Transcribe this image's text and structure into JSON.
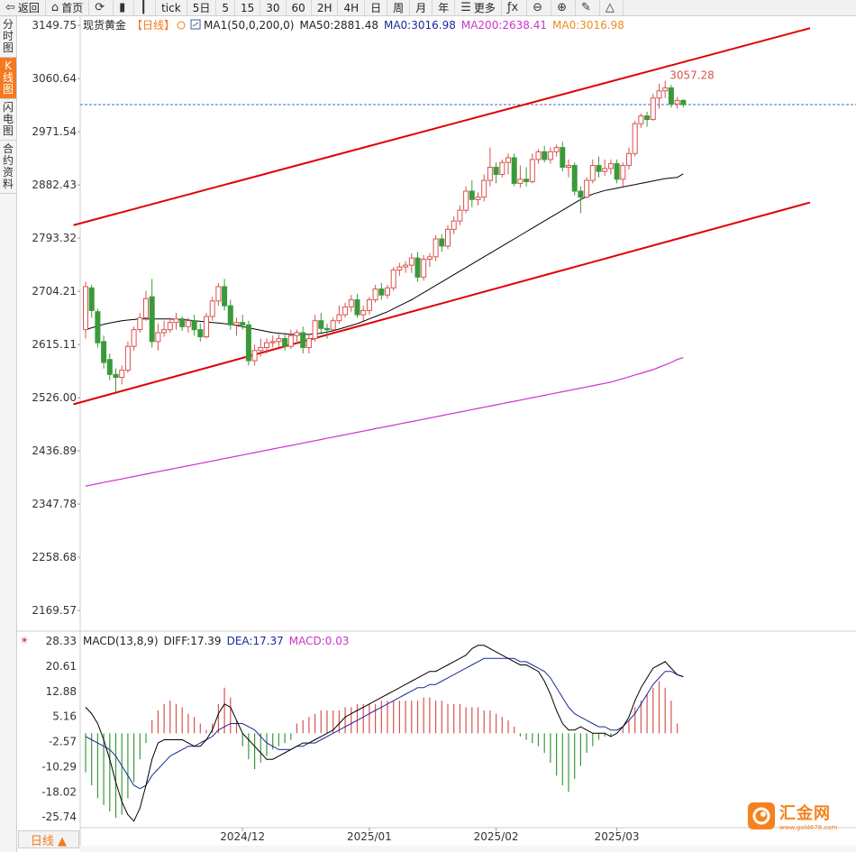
{
  "toolbar": {
    "items": [
      {
        "label": "返回",
        "icon": "back-arrow-icon"
      },
      {
        "label": "首页",
        "icon": "home-icon"
      },
      {
        "label": "",
        "icon": "refresh-icon"
      },
      {
        "label": "",
        "icon": "bar-chart-icon"
      },
      {
        "label": "",
        "icon": "candlestick-icon"
      },
      {
        "label": "tick",
        "icon": ""
      },
      {
        "label": "5日",
        "icon": ""
      },
      {
        "label": "5",
        "icon": ""
      },
      {
        "label": "15",
        "icon": ""
      },
      {
        "label": "30",
        "icon": ""
      },
      {
        "label": "60",
        "icon": ""
      },
      {
        "label": "2H",
        "icon": ""
      },
      {
        "label": "4H",
        "icon": ""
      },
      {
        "label": "日",
        "icon": ""
      },
      {
        "label": "周",
        "icon": ""
      },
      {
        "label": "月",
        "icon": ""
      },
      {
        "label": "年",
        "icon": ""
      },
      {
        "label": "更多",
        "icon": "menu-icon"
      },
      {
        "label": "",
        "icon": "fx-icon"
      },
      {
        "label": "",
        "icon": "zoom-out-icon"
      },
      {
        "label": "",
        "icon": "zoom-in-icon"
      },
      {
        "label": "",
        "icon": "pen-icon"
      },
      {
        "label": "",
        "icon": "triangle-icon"
      }
    ]
  },
  "sidebar": {
    "tabs": [
      {
        "label": "分时图",
        "active": false
      },
      {
        "label": "K线图",
        "active": true
      },
      {
        "label": "闪电图",
        "active": false
      },
      {
        "label": "合约资料",
        "active": false
      }
    ]
  },
  "legend": {
    "symbol": "现货黄金",
    "period": "【日线】",
    "ma1": "MA1(50,0,200,0)",
    "ma50": "MA50:2881.48",
    "ma0": "MA0:3016.98",
    "ma200": "MA200:2638.41",
    "ma0b": "MA0:3016.98"
  },
  "macd_legend": {
    "name": "MACD(13,8,9)",
    "diff": "DIFF:17.39",
    "dea": "DEA:17.37",
    "macd": "MACD:0.03"
  },
  "colors": {
    "up": "#d9534f",
    "down": "#3a9a3a",
    "ma50": "#000000",
    "ma200": "#cc33cc",
    "ma0": "#e89020",
    "channel": "#e00000",
    "dea": "#1a2a9a",
    "accent": "#f47a1f"
  },
  "period_badge": "日线 ▲",
  "watermark": {
    "title": "汇金网",
    "url": "www.gold678.com"
  },
  "price_label": "3057.28",
  "chart_data": {
    "type": "candlestick",
    "y_ticks": [
      "3149.75",
      "3060.64",
      "2971.54",
      "2882.43",
      "2793.32",
      "2704.21",
      "2615.11",
      "2526.00",
      "2436.89",
      "2347.78",
      "2258.68",
      "2169.57"
    ],
    "ylim": [
      2135,
      3165
    ],
    "x_ticks": [
      {
        "label": "2024/12",
        "index": 26
      },
      {
        "label": "2025/01",
        "index": 47
      },
      {
        "label": "2025/02",
        "index": 68
      },
      {
        "label": "2025/03",
        "index": 88
      }
    ],
    "current_price": 3016.98,
    "max_label": "3057.28",
    "candles": [
      {
        "o": 2640,
        "h": 2720,
        "l": 2625,
        "c": 2712
      },
      {
        "o": 2710,
        "h": 2715,
        "l": 2660,
        "c": 2672
      },
      {
        "o": 2670,
        "h": 2675,
        "l": 2610,
        "c": 2618
      },
      {
        "o": 2620,
        "h": 2630,
        "l": 2575,
        "c": 2585
      },
      {
        "o": 2590,
        "h": 2600,
        "l": 2555,
        "c": 2565
      },
      {
        "o": 2565,
        "h": 2575,
        "l": 2535,
        "c": 2560
      },
      {
        "o": 2560,
        "h": 2580,
        "l": 2548,
        "c": 2572
      },
      {
        "o": 2572,
        "h": 2620,
        "l": 2568,
        "c": 2612
      },
      {
        "o": 2612,
        "h": 2645,
        "l": 2605,
        "c": 2640
      },
      {
        "o": 2640,
        "h": 2668,
        "l": 2635,
        "c": 2660
      },
      {
        "o": 2660,
        "h": 2705,
        "l": 2655,
        "c": 2692
      },
      {
        "o": 2695,
        "h": 2725,
        "l": 2610,
        "c": 2620
      },
      {
        "o": 2620,
        "h": 2650,
        "l": 2605,
        "c": 2635
      },
      {
        "o": 2635,
        "h": 2655,
        "l": 2628,
        "c": 2640
      },
      {
        "o": 2640,
        "h": 2660,
        "l": 2635,
        "c": 2652
      },
      {
        "o": 2652,
        "h": 2668,
        "l": 2640,
        "c": 2658
      },
      {
        "o": 2658,
        "h": 2662,
        "l": 2638,
        "c": 2645
      },
      {
        "o": 2645,
        "h": 2660,
        "l": 2635,
        "c": 2655
      },
      {
        "o": 2655,
        "h": 2665,
        "l": 2630,
        "c": 2640
      },
      {
        "o": 2640,
        "h": 2650,
        "l": 2620,
        "c": 2628
      },
      {
        "o": 2628,
        "h": 2668,
        "l": 2625,
        "c": 2662
      },
      {
        "o": 2662,
        "h": 2695,
        "l": 2655,
        "c": 2688
      },
      {
        "o": 2688,
        "h": 2718,
        "l": 2680,
        "c": 2712
      },
      {
        "o": 2712,
        "h": 2725,
        "l": 2672,
        "c": 2680
      },
      {
        "o": 2680,
        "h": 2690,
        "l": 2640,
        "c": 2648
      },
      {
        "o": 2648,
        "h": 2660,
        "l": 2630,
        "c": 2652
      },
      {
        "o": 2652,
        "h": 2665,
        "l": 2640,
        "c": 2648
      },
      {
        "o": 2648,
        "h": 2655,
        "l": 2580,
        "c": 2588
      },
      {
        "o": 2588,
        "h": 2615,
        "l": 2580,
        "c": 2605
      },
      {
        "o": 2605,
        "h": 2625,
        "l": 2595,
        "c": 2610
      },
      {
        "o": 2610,
        "h": 2625,
        "l": 2600,
        "c": 2618
      },
      {
        "o": 2618,
        "h": 2630,
        "l": 2610,
        "c": 2620
      },
      {
        "o": 2620,
        "h": 2632,
        "l": 2610,
        "c": 2625
      },
      {
        "o": 2625,
        "h": 2635,
        "l": 2605,
        "c": 2612
      },
      {
        "o": 2612,
        "h": 2640,
        "l": 2608,
        "c": 2630
      },
      {
        "o": 2630,
        "h": 2640,
        "l": 2620,
        "c": 2635
      },
      {
        "o": 2635,
        "h": 2645,
        "l": 2600,
        "c": 2610
      },
      {
        "o": 2610,
        "h": 2632,
        "l": 2600,
        "c": 2625
      },
      {
        "o": 2625,
        "h": 2665,
        "l": 2620,
        "c": 2655
      },
      {
        "o": 2655,
        "h": 2668,
        "l": 2635,
        "c": 2642
      },
      {
        "o": 2642,
        "h": 2650,
        "l": 2625,
        "c": 2640
      },
      {
        "o": 2640,
        "h": 2660,
        "l": 2635,
        "c": 2655
      },
      {
        "o": 2655,
        "h": 2680,
        "l": 2650,
        "c": 2665
      },
      {
        "o": 2665,
        "h": 2685,
        "l": 2660,
        "c": 2678
      },
      {
        "o": 2678,
        "h": 2698,
        "l": 2670,
        "c": 2690
      },
      {
        "o": 2690,
        "h": 2700,
        "l": 2660,
        "c": 2665
      },
      {
        "o": 2665,
        "h": 2680,
        "l": 2655,
        "c": 2672
      },
      {
        "o": 2672,
        "h": 2695,
        "l": 2665,
        "c": 2690
      },
      {
        "o": 2690,
        "h": 2715,
        "l": 2685,
        "c": 2708
      },
      {
        "o": 2708,
        "h": 2718,
        "l": 2690,
        "c": 2698
      },
      {
        "o": 2698,
        "h": 2715,
        "l": 2692,
        "c": 2710
      },
      {
        "o": 2710,
        "h": 2745,
        "l": 2705,
        "c": 2740
      },
      {
        "o": 2740,
        "h": 2752,
        "l": 2730,
        "c": 2745
      },
      {
        "o": 2745,
        "h": 2755,
        "l": 2735,
        "c": 2748
      },
      {
        "o": 2748,
        "h": 2768,
        "l": 2735,
        "c": 2760
      },
      {
        "o": 2760,
        "h": 2770,
        "l": 2720,
        "c": 2728
      },
      {
        "o": 2728,
        "h": 2765,
        "l": 2722,
        "c": 2758
      },
      {
        "o": 2758,
        "h": 2768,
        "l": 2745,
        "c": 2762
      },
      {
        "o": 2762,
        "h": 2798,
        "l": 2755,
        "c": 2792
      },
      {
        "o": 2792,
        "h": 2800,
        "l": 2770,
        "c": 2780
      },
      {
        "o": 2780,
        "h": 2815,
        "l": 2775,
        "c": 2808
      },
      {
        "o": 2808,
        "h": 2830,
        "l": 2800,
        "c": 2822
      },
      {
        "o": 2822,
        "h": 2848,
        "l": 2815,
        "c": 2840
      },
      {
        "o": 2840,
        "h": 2880,
        "l": 2835,
        "c": 2872
      },
      {
        "o": 2872,
        "h": 2890,
        "l": 2845,
        "c": 2858
      },
      {
        "o": 2858,
        "h": 2870,
        "l": 2848,
        "c": 2862
      },
      {
        "o": 2862,
        "h": 2900,
        "l": 2855,
        "c": 2890
      },
      {
        "o": 2890,
        "h": 2945,
        "l": 2880,
        "c": 2912
      },
      {
        "o": 2912,
        "h": 2920,
        "l": 2885,
        "c": 2900
      },
      {
        "o": 2900,
        "h": 2925,
        "l": 2895,
        "c": 2920
      },
      {
        "o": 2920,
        "h": 2935,
        "l": 2900,
        "c": 2928
      },
      {
        "o": 2928,
        "h": 2935,
        "l": 2880,
        "c": 2885
      },
      {
        "o": 2885,
        "h": 2915,
        "l": 2878,
        "c": 2892
      },
      {
        "o": 2892,
        "h": 2912,
        "l": 2880,
        "c": 2888
      },
      {
        "o": 2888,
        "h": 2935,
        "l": 2885,
        "c": 2925
      },
      {
        "o": 2925,
        "h": 2942,
        "l": 2918,
        "c": 2938
      },
      {
        "o": 2938,
        "h": 2948,
        "l": 2920,
        "c": 2925
      },
      {
        "o": 2925,
        "h": 2945,
        "l": 2918,
        "c": 2938
      },
      {
        "o": 2938,
        "h": 2950,
        "l": 2930,
        "c": 2945
      },
      {
        "o": 2945,
        "h": 2955,
        "l": 2905,
        "c": 2912
      },
      {
        "o": 2912,
        "h": 2925,
        "l": 2895,
        "c": 2915
      },
      {
        "o": 2915,
        "h": 2920,
        "l": 2865,
        "c": 2872
      },
      {
        "o": 2872,
        "h": 2880,
        "l": 2835,
        "c": 2862
      },
      {
        "o": 2862,
        "h": 2895,
        "l": 2860,
        "c": 2890
      },
      {
        "o": 2890,
        "h": 2925,
        "l": 2885,
        "c": 2915
      },
      {
        "o": 2915,
        "h": 2930,
        "l": 2895,
        "c": 2905
      },
      {
        "o": 2905,
        "h": 2925,
        "l": 2898,
        "c": 2910
      },
      {
        "o": 2910,
        "h": 2925,
        "l": 2900,
        "c": 2918
      },
      {
        "o": 2918,
        "h": 2925,
        "l": 2885,
        "c": 2892
      },
      {
        "o": 2892,
        "h": 2920,
        "l": 2880,
        "c": 2915
      },
      {
        "o": 2915,
        "h": 2945,
        "l": 2908,
        "c": 2935
      },
      {
        "o": 2935,
        "h": 2990,
        "l": 2930,
        "c": 2985
      },
      {
        "o": 2985,
        "h": 3002,
        "l": 2978,
        "c": 2998
      },
      {
        "o": 2998,
        "h": 3005,
        "l": 2980,
        "c": 2992
      },
      {
        "o": 2992,
        "h": 3035,
        "l": 2990,
        "c": 3028
      },
      {
        "o": 3028,
        "h": 3052,
        "l": 3010,
        "c": 3040
      },
      {
        "o": 3040,
        "h": 3057,
        "l": 3028,
        "c": 3045
      },
      {
        "o": 3045,
        "h": 3050,
        "l": 3012,
        "c": 3018
      },
      {
        "o": 3018,
        "h": 3030,
        "l": 3010,
        "c": 3024
      },
      {
        "o": 3024,
        "h": 3026,
        "l": 3012,
        "c": 3017
      }
    ],
    "ma50": [
      2640,
      2643,
      2646,
      2649,
      2651,
      2653,
      2655,
      2656,
      2657,
      2658,
      2658,
      2658,
      2658,
      2658,
      2658,
      2657,
      2657,
      2656,
      2655,
      2654,
      2653,
      2652,
      2651,
      2650,
      2649,
      2647,
      2645,
      2643,
      2641,
      2639,
      2637,
      2635,
      2634,
      2633,
      2632,
      2632,
      2632,
      2632,
      2633,
      2634,
      2636,
      2638,
      2641,
      2644,
      2647,
      2650,
      2654,
      2658,
      2662,
      2666,
      2670,
      2675,
      2680,
      2685,
      2690,
      2696,
      2702,
      2708,
      2714,
      2720,
      2726,
      2732,
      2738,
      2744,
      2750,
      2756,
      2762,
      2768,
      2774,
      2780,
      2786,
      2792,
      2798,
      2804,
      2810,
      2816,
      2822,
      2828,
      2834,
      2840,
      2846,
      2852,
      2858,
      2863,
      2867,
      2870,
      2873,
      2875,
      2877,
      2879,
      2881,
      2883,
      2885,
      2887,
      2889,
      2891,
      2893,
      2894,
      2895,
      2881.48
    ],
    "ma200": [
      2378,
      2380,
      2382,
      2384,
      2386,
      2388,
      2390,
      2392,
      2394,
      2396,
      2398,
      2400,
      2402,
      2404,
      2406,
      2408,
      2410,
      2412,
      2414,
      2416,
      2418,
      2420,
      2422,
      2424,
      2426,
      2428,
      2430,
      2432,
      2434,
      2436,
      2438,
      2440,
      2442,
      2444,
      2446,
      2448,
      2450,
      2452,
      2454,
      2456,
      2458,
      2460,
      2462,
      2464,
      2466,
      2468,
      2470,
      2472,
      2474,
      2476,
      2478,
      2480,
      2482,
      2484,
      2486,
      2488,
      2490,
      2492,
      2494,
      2496,
      2498,
      2500,
      2502,
      2504,
      2506,
      2508,
      2510,
      2512,
      2514,
      2516,
      2518,
      2520,
      2522,
      2524,
      2526,
      2528,
      2530,
      2532,
      2534,
      2536,
      2538,
      2540,
      2542,
      2544,
      2546,
      2548,
      2550,
      2552,
      2555,
      2558,
      2561,
      2564,
      2567,
      2570,
      2573,
      2577,
      2581,
      2585,
      2590,
      2638.41
    ],
    "channel": {
      "upper": [
        {
          "i": -2,
          "v": 2815
        },
        {
          "i": 120,
          "v": 3145
        }
      ],
      "lower": [
        {
          "i": -2,
          "v": 2515
        },
        {
          "i": 120,
          "v": 2853
        }
      ]
    },
    "macd": {
      "y_ticks": [
        "28.33",
        "20.61",
        "12.88",
        "5.16",
        "-2.57",
        "-10.29",
        "-18.02",
        "-25.74"
      ],
      "ylim": [
        -29,
        30
      ],
      "diff": [
        8,
        6,
        3,
        -2,
        -8,
        -15,
        -21,
        -25,
        -27,
        -23,
        -16,
        -8,
        -3,
        -2,
        -2,
        -2,
        -2,
        -3,
        -4,
        -4,
        -2,
        1,
        6,
        9,
        8,
        4,
        0,
        -2,
        -4,
        -6,
        -8,
        -8,
        -7,
        -6,
        -5,
        -4,
        -3,
        -3,
        -2,
        -1,
        0,
        1,
        3,
        5,
        6,
        7,
        8,
        9,
        10,
        11,
        12,
        13,
        14,
        15,
        16,
        17,
        18,
        19,
        19,
        20,
        21,
        22,
        23,
        24,
        26,
        27,
        27,
        26,
        25,
        24,
        23,
        22,
        21,
        21,
        20,
        19,
        16,
        12,
        7,
        3,
        1,
        1,
        2,
        1,
        0,
        0,
        0,
        -1,
        0,
        2,
        5,
        10,
        14,
        17,
        20,
        21,
        22,
        20,
        18,
        17.39
      ],
      "dea": [
        -1,
        -2,
        -3,
        -4,
        -5,
        -7,
        -10,
        -13,
        -16,
        -17,
        -16,
        -13,
        -11,
        -9,
        -7,
        -6,
        -5,
        -4,
        -4,
        -3,
        -2,
        -1,
        1,
        2,
        3,
        3,
        3,
        2,
        1,
        -1,
        -3,
        -4,
        -5,
        -5,
        -5,
        -4,
        -4,
        -3,
        -3,
        -2,
        -1,
        0,
        1,
        2,
        3,
        4,
        5,
        6,
        7,
        8,
        9,
        10,
        11,
        12,
        13,
        14,
        14,
        15,
        15,
        16,
        17,
        18,
        19,
        20,
        21,
        22,
        23,
        23,
        23,
        23,
        23,
        23,
        22,
        22,
        21,
        20,
        19,
        17,
        14,
        11,
        8,
        6,
        5,
        4,
        3,
        2,
        2,
        1,
        1,
        2,
        4,
        6,
        9,
        12,
        15,
        17,
        19,
        19,
        18,
        17.37
      ],
      "hist": [
        -12,
        -16,
        -20,
        -22,
        -24,
        -26,
        -25,
        -20,
        -15,
        -8,
        -3,
        4,
        7,
        9,
        10,
        9,
        8,
        6,
        5,
        3,
        1,
        3,
        9,
        14,
        11,
        4,
        -4,
        -8,
        -11,
        -9,
        -7,
        -5,
        -4,
        -3,
        -2,
        3,
        4,
        5,
        6,
        7,
        7,
        7,
        7,
        8,
        8,
        9,
        9,
        9,
        9,
        10,
        10,
        10,
        10,
        10,
        10,
        10,
        11,
        11,
        10,
        10,
        9,
        9,
        9,
        8,
        8,
        8,
        7,
        7,
        6,
        5,
        4,
        2,
        -1,
        -2,
        -3,
        -4,
        -6,
        -9,
        -13,
        -16,
        -18,
        -14,
        -10,
        -6,
        -4,
        -2,
        -1,
        -1,
        0,
        2,
        4,
        8,
        10,
        12,
        14,
        16,
        14,
        10,
        3,
        0.03
      ]
    }
  }
}
